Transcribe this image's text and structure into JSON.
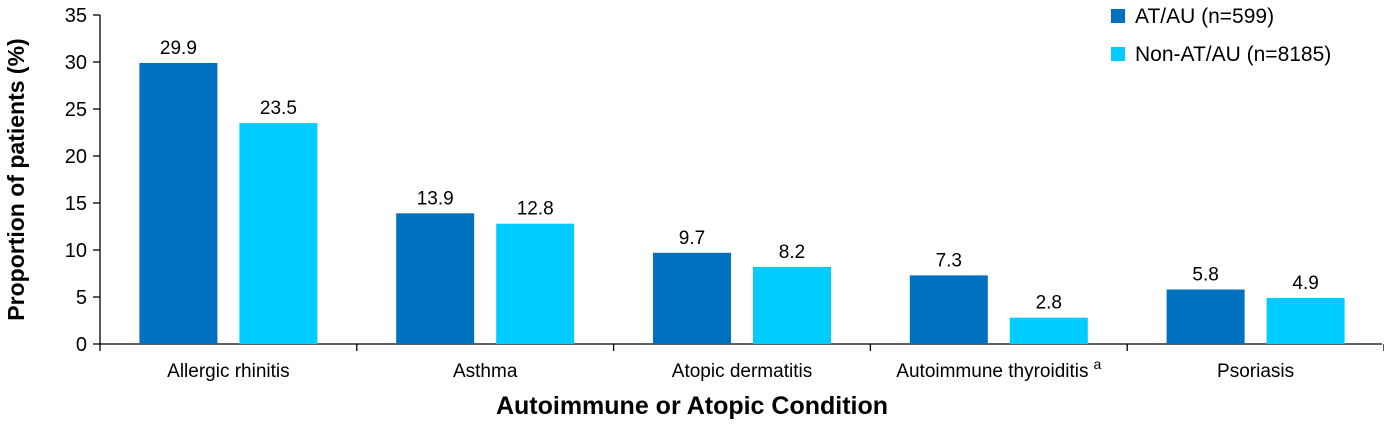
{
  "chart_data": {
    "type": "bar",
    "categories": [
      "Allergic rhinitis",
      "Asthma",
      "Atopic dermatitis",
      "Autoimmune thyroiditis",
      "Psoriasis"
    ],
    "category_superscripts": [
      "",
      "",
      "",
      "a",
      ""
    ],
    "series": [
      {
        "name": "AT/AU (n=599)",
        "values": [
          29.9,
          13.9,
          9.7,
          7.3,
          5.8
        ],
        "color": "#0070C0"
      },
      {
        "name": "Non-AT/AU (n=8185)",
        "values": [
          23.5,
          12.8,
          8.2,
          2.8,
          4.9
        ],
        "color": "#00CCFF"
      }
    ],
    "value_labels": [
      [
        "29.9",
        "13.9",
        "9.7",
        "7.3",
        "5.8"
      ],
      [
        "23.5",
        "12.8",
        "8.2",
        "2.8",
        "4.9"
      ]
    ],
    "xlabel": "Autoimmune or Atopic Condition",
    "ylabel": "Proportion of patients (%)",
    "ylim": [
      0,
      35
    ],
    "yticks": [
      0,
      5,
      10,
      15,
      20,
      25,
      30,
      35
    ],
    "grid": false,
    "legend_position": "top-right"
  }
}
